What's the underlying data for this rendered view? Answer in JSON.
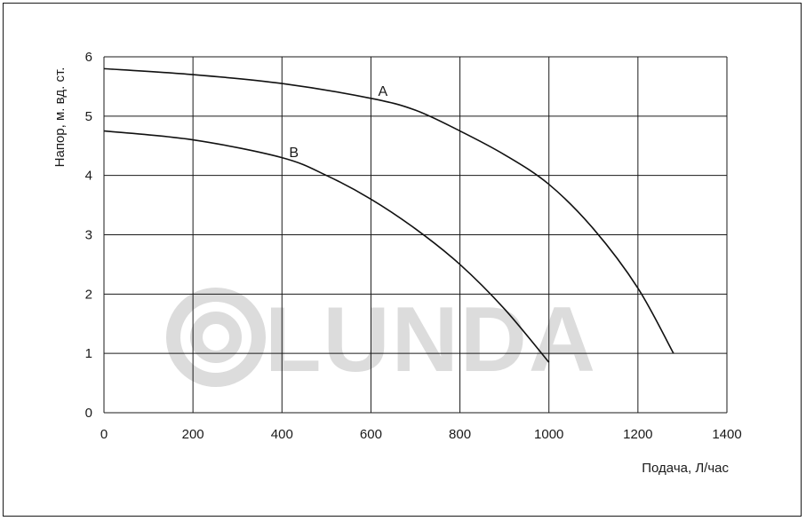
{
  "chart_data": {
    "type": "line",
    "xlabel": "Подача, Л/час",
    "ylabel": "Напор, м. вд. ст.",
    "xlim": [
      0,
      1400
    ],
    "ylim": [
      0,
      6
    ],
    "xticks": [
      0,
      200,
      400,
      600,
      800,
      1000,
      1200,
      1400
    ],
    "yticks": [
      0,
      1,
      2,
      3,
      4,
      5,
      6
    ],
    "grid": true,
    "series": [
      {
        "name": "A",
        "x": [
          0,
          200,
          400,
          600,
          700,
          800,
          900,
          1000,
          1100,
          1200,
          1280
        ],
        "y": [
          5.8,
          5.7,
          5.55,
          5.3,
          5.1,
          4.75,
          4.35,
          3.85,
          3.1,
          2.1,
          1.0
        ]
      },
      {
        "name": "B",
        "x": [
          0,
          200,
          400,
          500,
          600,
          700,
          800,
          900,
          1000
        ],
        "y": [
          4.75,
          4.6,
          4.3,
          4.0,
          3.6,
          3.1,
          2.5,
          1.75,
          0.85
        ]
      }
    ]
  },
  "watermark": "LUNDA",
  "colors": {
    "line": "#111111",
    "grid": "#1a1a1a",
    "watermark": "#dcdcdc"
  }
}
